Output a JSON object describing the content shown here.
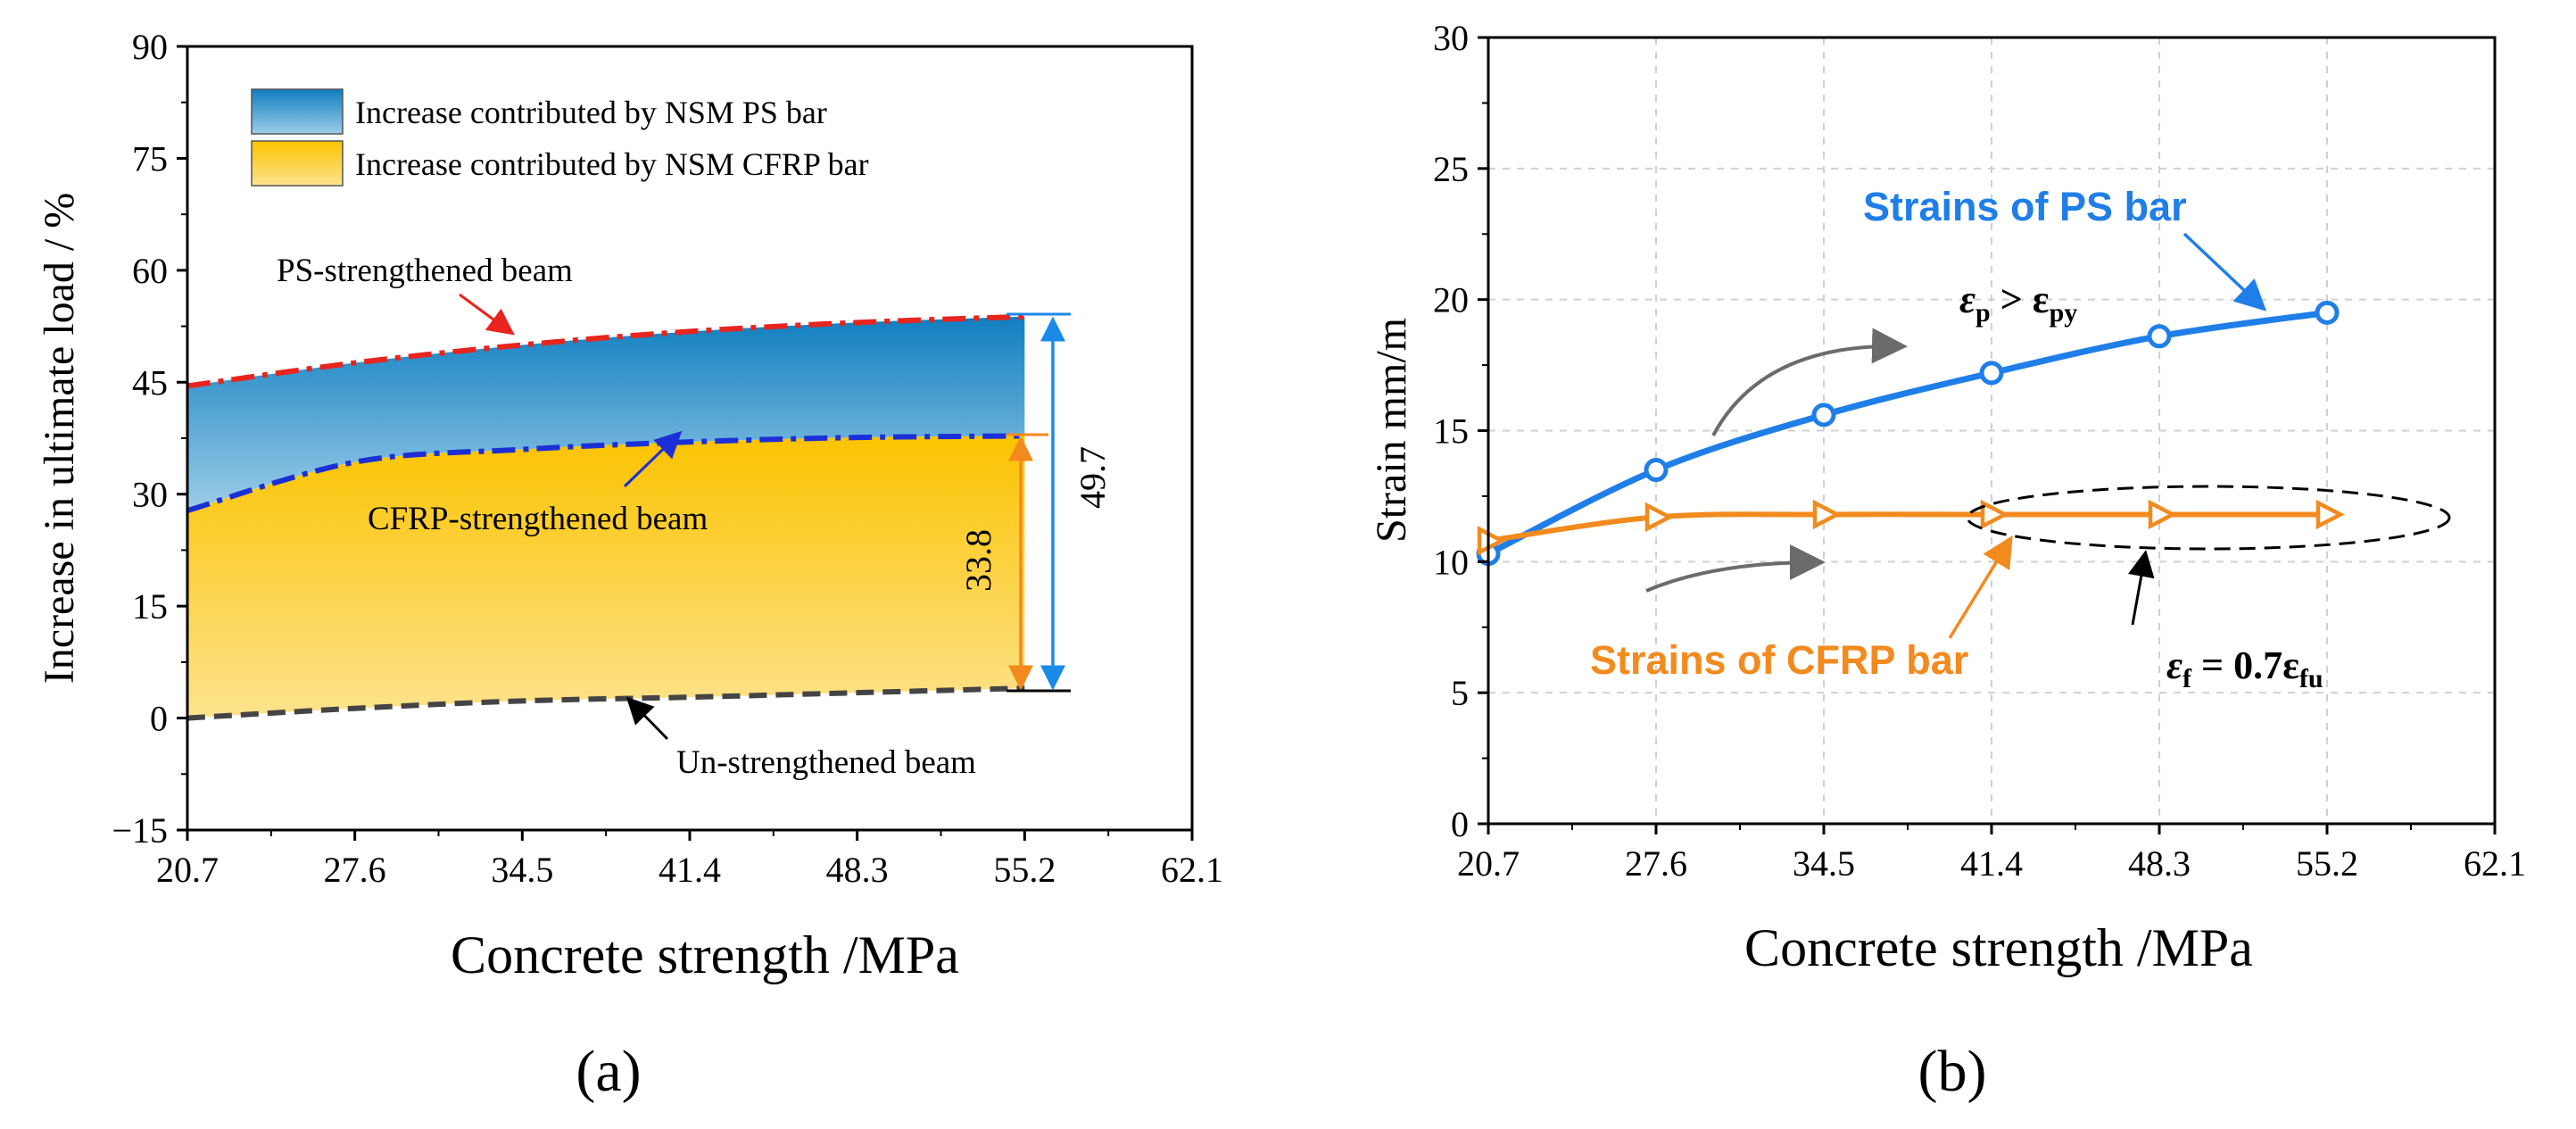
{
  "chart_data": [
    {
      "type": "area",
      "panel_label": "(a)",
      "xlabel": "Concrete strength /MPa",
      "ylabel": "Increase in ultimate load / %",
      "xticks": [
        "20.7",
        "27.6",
        "34.5",
        "41.4",
        "48.3",
        "55.2",
        "62.1"
      ],
      "xlim": [
        20.7,
        62.1
      ],
      "ylim": [
        -15,
        90
      ],
      "yticks": [
        "-15",
        "0",
        "15",
        "30",
        "45",
        "60",
        "75",
        "90"
      ],
      "x": [
        20.7,
        27.6,
        34.5,
        41.4,
        48.3,
        55.2
      ],
      "series": [
        {
          "name": "PS-strengthened beam",
          "values": [
            44.5,
            47.6,
            50.0,
            51.8,
            53.0,
            53.8
          ],
          "color": "#e8241e",
          "style": "dash-dot"
        },
        {
          "name": "CFRP-strengthened beam",
          "values": [
            27.8,
            34.3,
            36.0,
            37.0,
            37.6,
            37.8
          ],
          "color": "#1c2fd6",
          "style": "dash-dot"
        },
        {
          "name": "Un-strengthened beam",
          "values": [
            0.0,
            1.3,
            2.3,
            2.8,
            3.4,
            4.0
          ],
          "color": "#444444",
          "style": "dashed"
        }
      ],
      "fills": [
        {
          "name": "Increase contributed by NSM PS bar",
          "between": [
            "CFRP-strengthened beam",
            "PS-strengthened beam"
          ],
          "colors": [
            "#0f7ec0",
            "#9ccde8"
          ]
        },
        {
          "name": "Increase contributed by NSM CFRP bar",
          "between": [
            "Un-strengthened beam",
            "CFRP-strengthened beam"
          ],
          "colors": [
            "#fbc300",
            "#fde38e"
          ]
        }
      ],
      "annotations": [
        {
          "text": "33.8",
          "color": "#f28a1e"
        },
        {
          "text": "49.7",
          "color": "#1a8ae8"
        }
      ]
    },
    {
      "type": "line",
      "panel_label": "(b)",
      "xlabel": "Concrete strength /MPa",
      "ylabel": "Strain  mm/m",
      "xticks": [
        "20.7",
        "27.6",
        "34.5",
        "41.4",
        "48.3",
        "55.2",
        "62.1"
      ],
      "xlim": [
        20.7,
        62.1
      ],
      "ylim": [
        0,
        30
      ],
      "yticks": [
        "0",
        "5",
        "10",
        "15",
        "20",
        "25",
        "30"
      ],
      "x": [
        20.7,
        27.6,
        34.5,
        41.4,
        48.3,
        55.2
      ],
      "series": [
        {
          "name": "Strains of PS bar",
          "values": [
            10.3,
            13.5,
            15.6,
            17.2,
            18.6,
            19.5
          ],
          "color": "#1f7ee8",
          "marker": "circle"
        },
        {
          "name": "Strains of CFRP bar",
          "values": [
            10.8,
            11.7,
            11.8,
            11.8,
            11.8,
            11.8
          ],
          "color": "#f28a1e",
          "marker": "triangle-right"
        }
      ],
      "annotations": [
        {
          "text_main": "ε",
          "sub1": "p",
          "rel": " > ε",
          "sub2": "py"
        },
        {
          "text_main": "ε",
          "sub1": "f",
          "rel": " = 0.7ε",
          "sub2": "fu"
        }
      ]
    }
  ],
  "legend_a": [
    "Increase contributed by NSM PS bar",
    "Increase contributed by NSM CFRP bar"
  ]
}
